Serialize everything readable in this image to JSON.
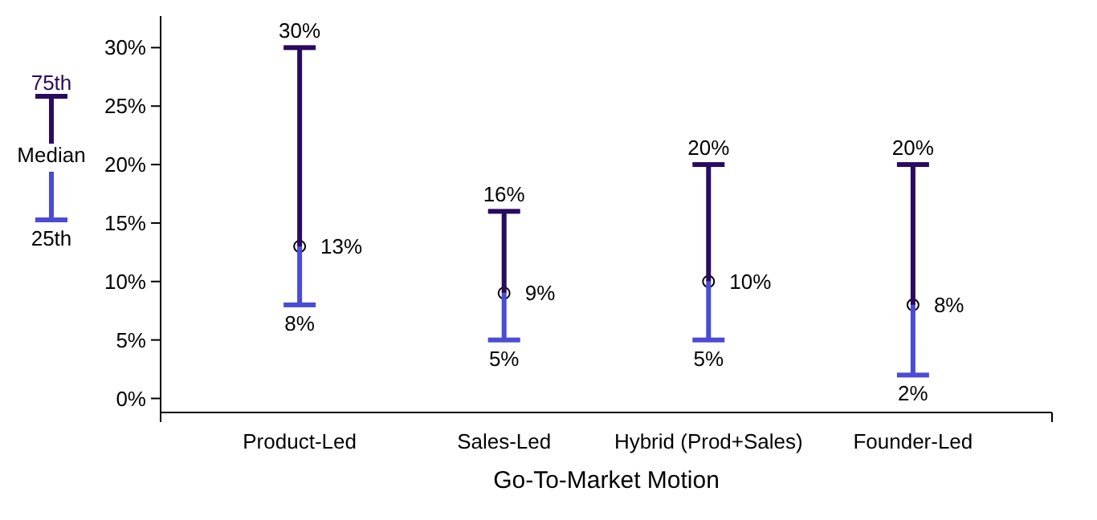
{
  "chart_data": {
    "type": "bar",
    "xlabel": "Go-To-Market Motion",
    "categories": [
      "Product-Led",
      "Sales-Led",
      "Hybrid (Prod+Sales)",
      "Founder-Led"
    ],
    "series": [
      {
        "name": "25th",
        "color": "#4b4bd6",
        "base": [
          8,
          5,
          5,
          2
        ],
        "values": [
          5,
          4,
          5,
          6
        ]
      },
      {
        "name": "75th",
        "color": "#2a0a5e",
        "base": [
          13,
          9,
          10,
          8
        ],
        "values": [
          17,
          7,
          10,
          12
        ]
      },
      {
        "type": "scatter",
        "color": "#ffffff",
        "values": [
          13,
          9,
          10,
          8
        ]
      }
    ],
    "ylim": [
      -1.2,
      32.7
    ],
    "yticks": [
      {
        "value": 0,
        "label": "0%"
      },
      {
        "value": 5,
        "label": "5%"
      },
      {
        "value": 10,
        "label": "10%"
      },
      {
        "value": 15,
        "label": "15%"
      },
      {
        "value": 20,
        "label": "20%"
      },
      {
        "value": 25,
        "label": "25%"
      },
      {
        "value": 30,
        "label": "30%"
      }
    ],
    "marker": "circle",
    "legend": "left",
    "grid": false,
    "annotations": [
      "Median",
      {
        "text": "30%",
        "x": "Product-Led",
        "y": 30
      },
      {
        "text": "13%",
        "x": "Product-Led",
        "y": 13
      },
      {
        "text": "8%",
        "x": "Product-Led",
        "y": 8
      },
      {
        "text": "16%",
        "x": "Sales-Led",
        "y": 16
      },
      {
        "text": "9%",
        "x": "Sales-Led",
        "y": 9
      },
      {
        "text": "5%",
        "x": "Sales-Led",
        "y": 5
      },
      {
        "text": "20%",
        "x": "Hybrid (Prod+Sales)",
        "y": 20
      },
      {
        "text": "10%",
        "x": "Hybrid (Prod+Sales)",
        "y": 10
      },
      {
        "text": "5%",
        "x": "Hybrid (Prod+Sales)",
        "y": 5
      },
      {
        "text": "20%",
        "x": "Founder-Led",
        "y": 20
      },
      {
        "text": "8%",
        "x": "Founder-Led",
        "y": 8
      },
      {
        "text": "2%",
        "x": "Founder-Led",
        "y": 2
      }
    ]
  }
}
